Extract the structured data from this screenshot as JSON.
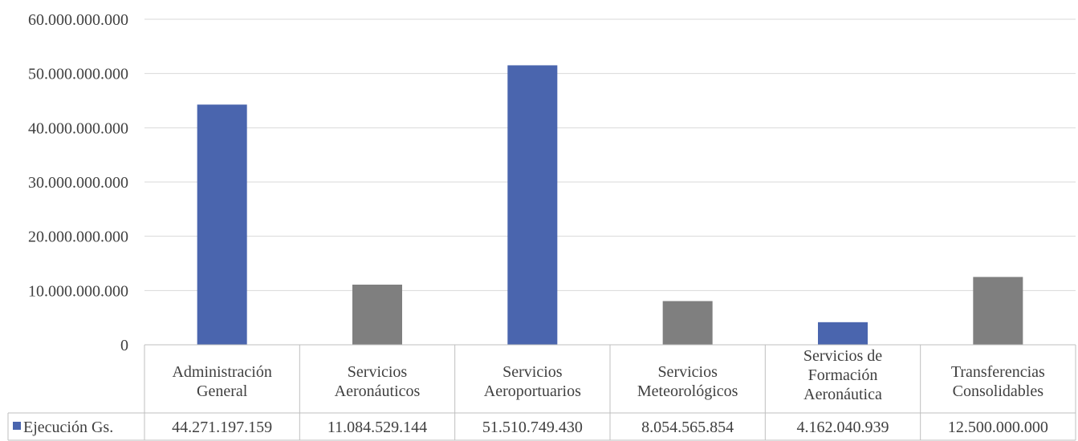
{
  "chart_data": {
    "type": "bar",
    "categories": [
      [
        "Administración",
        "General"
      ],
      [
        "Servicios",
        "Aeronáuticos"
      ],
      [
        "Servicios",
        "Aeroportuarios"
      ],
      [
        "Servicios",
        "Meteorológicos"
      ],
      [
        "Servicios de",
        "Formación",
        "Aeronáutica"
      ],
      [
        "Transferencias",
        "Consolidables"
      ]
    ],
    "series": [
      {
        "name": "Ejecución Gs.",
        "values": [
          44271197159,
          11084529144,
          51510749430,
          8054565854,
          4162040939,
          12500000000
        ],
        "value_labels": [
          "44.271.197.159",
          "11.084.529.144",
          "51.510.749.430",
          "8.054.565.854",
          "4.162.040.939",
          "12.500.000.000"
        ]
      }
    ],
    "bar_colors": [
      "#4a65ae",
      "#7f7f7f",
      "#4a65ae",
      "#7f7f7f",
      "#4a65ae",
      "#7f7f7f"
    ],
    "legend_color": "#4a65ae",
    "ylim": [
      0,
      60000000000
    ],
    "yticks": [
      0,
      10000000000,
      20000000000,
      30000000000,
      40000000000,
      50000000000,
      60000000000
    ],
    "ytick_labels": [
      "0",
      "10.000.000.000",
      "20.000.000.000",
      "30.000.000.000",
      "40.000.000.000",
      "50.000.000.000",
      "60.000.000.000"
    ],
    "grid": true,
    "data_table": true,
    "legend": "data-table-row"
  }
}
